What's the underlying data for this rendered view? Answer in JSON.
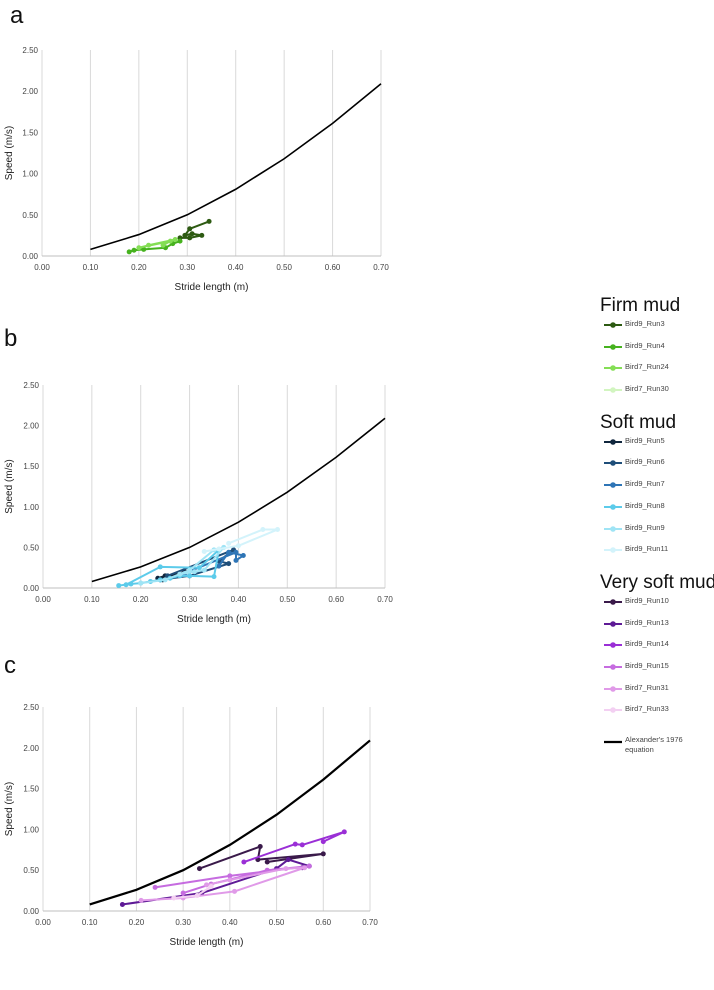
{
  "legend": {
    "groups": [
      {
        "title": "Firm mud",
        "items": [
          {
            "label": "Bird9_Run3",
            "color": "#2d5a12"
          },
          {
            "label": "Bird9_Run4",
            "color": "#46b21e"
          },
          {
            "label": "Bird7_Run24",
            "color": "#84de55"
          },
          {
            "label": "Bird7_Run30",
            "color": "#d2f5c0"
          }
        ]
      },
      {
        "title": "Soft mud",
        "items": [
          {
            "label": "Bird9_Run5",
            "color": "#10263d"
          },
          {
            "label": "Bird9_Run6",
            "color": "#1f4e79"
          },
          {
            "label": "Bird9_Run7",
            "color": "#2e75b6"
          },
          {
            "label": "Bird9_Run8",
            "color": "#5ccbea"
          },
          {
            "label": "Bird9_Run9",
            "color": "#9fe4f5"
          },
          {
            "label": "Bird9_Run11",
            "color": "#d3f3fb"
          }
        ]
      },
      {
        "title": "Very soft mud",
        "items": [
          {
            "label": "Bird9_Run10",
            "color": "#3a1a4a"
          },
          {
            "label": "Bird9_Run13",
            "color": "#5e1a96"
          },
          {
            "label": "Bird9_Run14",
            "color": "#9a2fd6"
          },
          {
            "label": "Bird9_Run15",
            "color": "#c66ce0"
          },
          {
            "label": "Bird7_Run31",
            "color": "#e09ae8"
          },
          {
            "label": "Bird7_Run33",
            "color": "#f3d0f2"
          }
        ]
      }
    ],
    "equation_label": "Alexander's 1976 equation",
    "equation_color": "#000000"
  },
  "chart_data": [
    {
      "panel": "a",
      "type": "line",
      "xlabel": "Stride length (m)",
      "ylabel": "Speed (m/s)",
      "xlim": [
        0,
        0.7
      ],
      "ylim": [
        0,
        2.5
      ],
      "xticks": [
        "0.00",
        "0.10",
        "0.20",
        "0.30",
        "0.40",
        "0.50",
        "0.60",
        "0.70"
      ],
      "yticks": [
        "0.00",
        "0.50",
        "1.00",
        "1.50",
        "2.00",
        "2.50"
      ],
      "grid": "vertical",
      "reference": {
        "name": "Alexander's 1976 equation",
        "x": [
          0.1,
          0.2,
          0.3,
          0.4,
          0.5,
          0.6,
          0.7
        ],
        "y": [
          0.08,
          0.26,
          0.5,
          0.81,
          1.18,
          1.61,
          2.09
        ]
      },
      "series": [
        {
          "name": "Bird9_Run3",
          "x": [
            0.345,
            0.305,
            0.295,
            0.31,
            0.33,
            0.305,
            0.285
          ],
          "y": [
            0.42,
            0.33,
            0.25,
            0.27,
            0.25,
            0.22,
            0.22
          ]
        },
        {
          "name": "Bird9_Run4",
          "x": [
            0.285,
            0.27,
            0.255,
            0.21,
            0.19,
            0.18
          ],
          "y": [
            0.18,
            0.15,
            0.1,
            0.08,
            0.07,
            0.05
          ]
        },
        {
          "name": "Bird7_Run24",
          "x": [
            0.275,
            0.22,
            0.2,
            0.265,
            0.25
          ],
          "y": [
            0.2,
            0.13,
            0.1,
            0.18,
            0.13
          ]
        },
        {
          "name": "Bird7_Run30",
          "x": [],
          "y": []
        }
      ]
    },
    {
      "panel": "b",
      "type": "line",
      "xlabel": "Stride length (m)",
      "ylabel": "Speed (m/s)",
      "xlim": [
        0,
        0.7
      ],
      "ylim": [
        0,
        2.5
      ],
      "xticks": [
        "0.00",
        "0.10",
        "0.20",
        "0.30",
        "0.40",
        "0.50",
        "0.60",
        "0.70"
      ],
      "yticks": [
        "0.00",
        "0.50",
        "1.00",
        "1.50",
        "2.00",
        "2.50"
      ],
      "grid": "vertical",
      "reference": {
        "name": "Alexander's 1976 equation",
        "x": [
          0.1,
          0.2,
          0.3,
          0.4,
          0.5,
          0.6,
          0.7
        ],
        "y": [
          0.08,
          0.26,
          0.5,
          0.81,
          1.18,
          1.61,
          2.09
        ]
      },
      "series": [
        {
          "name": "Bird9_Run5",
          "x": [
            0.235,
            0.25,
            0.27,
            0.29,
            0.265,
            0.245
          ],
          "y": [
            0.12,
            0.15,
            0.16,
            0.2,
            0.14,
            0.1
          ]
        },
        {
          "name": "Bird9_Run6",
          "x": [
            0.24,
            0.3,
            0.38,
            0.36,
            0.39,
            0.255
          ],
          "y": [
            0.1,
            0.15,
            0.3,
            0.33,
            0.47,
            0.15
          ]
        },
        {
          "name": "Bird9_Run7",
          "x": [
            0.36,
            0.38,
            0.41,
            0.395,
            0.395,
            0.29
          ],
          "y": [
            0.27,
            0.44,
            0.4,
            0.34,
            0.44,
            0.18
          ]
        },
        {
          "name": "Bird9_Run8",
          "x": [
            0.155,
            0.18,
            0.2,
            0.22,
            0.24,
            0.26,
            0.28,
            0.3,
            0.35,
            0.36,
            0.32,
            0.24,
            0.17
          ],
          "y": [
            0.03,
            0.05,
            0.06,
            0.08,
            0.1,
            0.12,
            0.15,
            0.15,
            0.14,
            0.47,
            0.25,
            0.26,
            0.04
          ]
        },
        {
          "name": "Bird9_Run9",
          "x": [
            0.2,
            0.25,
            0.3,
            0.35,
            0.37,
            0.33,
            0.28,
            0.31
          ],
          "y": [
            0.06,
            0.1,
            0.22,
            0.47,
            0.5,
            0.22,
            0.17,
            0.2
          ]
        },
        {
          "name": "Bird9_Run11",
          "x": [
            0.38,
            0.45,
            0.48,
            0.4,
            0.33,
            0.36
          ],
          "y": [
            0.55,
            0.72,
            0.72,
            0.52,
            0.45,
            0.48
          ]
        }
      ]
    },
    {
      "panel": "c",
      "type": "line",
      "xlabel": "Stride length (m)",
      "ylabel": "Speed (m/s)",
      "xlim": [
        0,
        0.7
      ],
      "ylim": [
        0,
        2.5
      ],
      "xticks": [
        "0.00",
        "0.10",
        "0.20",
        "0.30",
        "0.40",
        "0.50",
        "0.60",
        "0.70"
      ],
      "yticks": [
        "0.00",
        "0.50",
        "1.00",
        "1.50",
        "2.00",
        "2.50"
      ],
      "grid": "vertical",
      "reference": {
        "name": "Alexander's 1976 equation",
        "x": [
          0.1,
          0.2,
          0.3,
          0.4,
          0.5,
          0.6,
          0.7
        ],
        "y": [
          0.08,
          0.26,
          0.5,
          0.81,
          1.18,
          1.61,
          2.09
        ]
      },
      "series": [
        {
          "name": "Bird9_Run10",
          "x": [
            0.335,
            0.465,
            0.46,
            0.6,
            0.48
          ],
          "y": [
            0.52,
            0.79,
            0.63,
            0.7,
            0.6
          ]
        },
        {
          "name": "Bird9_Run13",
          "x": [
            0.17,
            0.34,
            0.5,
            0.525,
            0.57,
            0.555
          ],
          "y": [
            0.08,
            0.22,
            0.52,
            0.63,
            0.55,
            0.53
          ]
        },
        {
          "name": "Bird9_Run14",
          "x": [
            0.43,
            0.54,
            0.555,
            0.645,
            0.6
          ],
          "y": [
            0.6,
            0.82,
            0.81,
            0.97,
            0.85
          ]
        },
        {
          "name": "Bird9_Run15",
          "x": [
            0.24,
            0.4,
            0.57,
            0.48,
            0.36,
            0.3
          ],
          "y": [
            0.29,
            0.43,
            0.55,
            0.5,
            0.33,
            0.22
          ]
        },
        {
          "name": "Bird7_Run31",
          "x": [
            0.21,
            0.3,
            0.41,
            0.56,
            0.52,
            0.4,
            0.35
          ],
          "y": [
            0.13,
            0.16,
            0.24,
            0.53,
            0.52,
            0.38,
            0.32
          ]
        },
        {
          "name": "Bird7_Run33",
          "x": [
            0.28,
            0.33,
            0.36
          ],
          "y": [
            0.16,
            0.19,
            0.3
          ]
        }
      ]
    }
  ]
}
